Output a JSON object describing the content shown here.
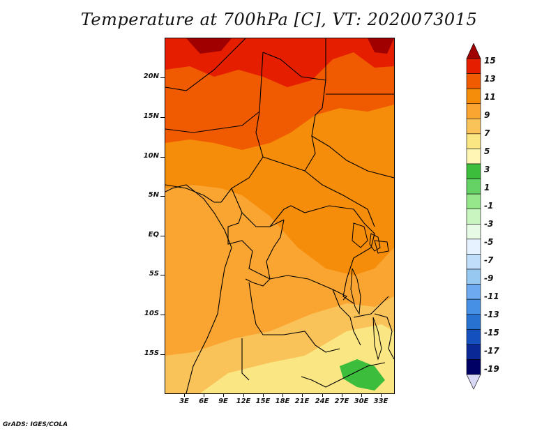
{
  "title": "Temperature at 700hPa [C], VT: 2020073015",
  "credit": "GrADS: IGES/COLA",
  "lat_labels": [
    "20N",
    "15N",
    "10N",
    "5N",
    "EQ",
    "5S",
    "10S",
    "15S"
  ],
  "lon_labels": [
    "3E",
    "6E",
    "9E",
    "12E",
    "15E",
    "18E",
    "21E",
    "24E",
    "27E",
    "30E",
    "33E"
  ],
  "colorbar": {
    "labels": [
      "15",
      "13",
      "11",
      "9",
      "7",
      "5",
      "3",
      "1",
      "-1",
      "-3",
      "-5",
      "-7",
      "-9",
      "-11",
      "-13",
      "-15",
      "-17",
      "-19"
    ],
    "colors": [
      "#a00000",
      "#e61e00",
      "#f05a00",
      "#f58c0a",
      "#faa532",
      "#fac35a",
      "#fae682",
      "#fff5b4",
      "#3cbe3c",
      "#64d264",
      "#96e68c",
      "#c8f5c0",
      "#e6fae6",
      "#e6f2ff",
      "#c0defa",
      "#96c8f0",
      "#6eaaf0",
      "#4690e6",
      "#2872d2",
      "#1450be",
      "#0a2896",
      "#000064",
      "#d8d8f5"
    ]
  }
}
